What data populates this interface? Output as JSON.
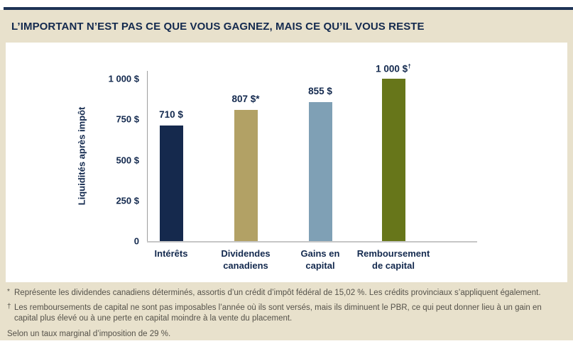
{
  "page": {
    "title": "L’IMPORTANT N’EST PAS CE QUE VOUS GAGNEZ, MAIS CE QU’IL VOUS RESTE"
  },
  "colors": {
    "accent_rule": "#1e3356",
    "panel_background": "#e8e1cc",
    "chart_background": "#ffffff",
    "heading_text": "#13294e",
    "navy_bar": "#15294d",
    "tan_bar": "#b2a165",
    "bluegray_bar": "#7fa0b5",
    "olive_bar": "#67761a",
    "footnote_text": "#55524a",
    "axis_line": "#9d9d9d",
    "baseline": "#c6c6c6"
  },
  "chart_data": {
    "type": "bar",
    "title": "",
    "ylabel": "Liquidités après impôt",
    "xlabel": "",
    "ylim": [
      0,
      1000
    ],
    "grid": false,
    "legend": false,
    "yticks": [
      {
        "value": 0,
        "label": "0"
      },
      {
        "value": 250,
        "label": "250 $"
      },
      {
        "value": 500,
        "label": "500 $"
      },
      {
        "value": 750,
        "label": "750 $"
      },
      {
        "value": 1000,
        "label": "1 000 $"
      }
    ],
    "categories": [
      "Intérêts",
      "Dividendes canadiens",
      "Gains en capital",
      "Remboursement de capital"
    ],
    "bars": [
      {
        "category_lines": [
          "Intérêts"
        ],
        "value": 710,
        "value_label": "710 $",
        "suffix": "",
        "color": "#15294d"
      },
      {
        "category_lines": [
          "Dividendes",
          "canadiens"
        ],
        "value": 807,
        "value_label": "807 $*",
        "suffix": "",
        "color": "#b2a165"
      },
      {
        "category_lines": [
          "Gains en",
          "capital"
        ],
        "value": 855,
        "value_label": "855 $",
        "suffix": "",
        "color": "#7fa0b5"
      },
      {
        "category_lines": [
          "Remboursement",
          "de capital"
        ],
        "value": 1000,
        "value_label": "1 000 $",
        "suffix": "†",
        "color": "#67761a"
      }
    ]
  },
  "footnotes": [
    {
      "marker": "*",
      "text": "Représente les dividendes canadiens déterminés, assortis d’un crédit d’impôt fédéral de 15,02 %. Les crédits provinciaux s’appliquent également."
    },
    {
      "marker": "†",
      "text": "Les remboursements de capital ne sont pas imposables l’année où ils sont versés, mais ils diminuent le PBR, ce qui peut donner lieu à un gain en capital plus élevé ou à une perte en capital moindre à la vente du placement."
    },
    {
      "marker": "",
      "text": "Selon un taux marginal d’imposition de 29 %."
    }
  ]
}
